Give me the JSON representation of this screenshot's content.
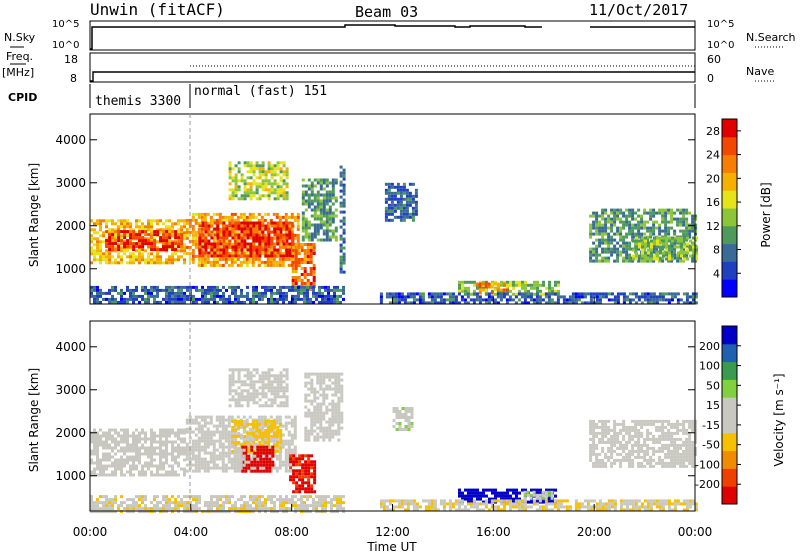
{
  "header": {
    "radar": "Unwin (fitACF)",
    "beam": "Beam 03",
    "date": "11/Oct/2017"
  },
  "top_panels": {
    "nsky_label": "N.Sky",
    "nsky_ticks": [
      "10^5",
      "10^0"
    ],
    "nsearch_label": "N.Search",
    "freq_label": "Freq.",
    "freq_unit": "[MHz]",
    "freq_ticks": [
      "18",
      "8"
    ],
    "nave_ticks": [
      "60",
      "0"
    ],
    "nave_label": "Nave",
    "cpid_label": "CPID",
    "cpid_segments": [
      {
        "name": "themis 3300",
        "start_hour": 0
      },
      {
        "name": "normal (fast) 151",
        "start_hour": 4
      }
    ]
  },
  "colors": {
    "power_scale": [
      "#0000ff",
      "#2040c0",
      "#3a6b96",
      "#4d9a5a",
      "#8cc43a",
      "#e6e31a",
      "#f5b000",
      "#f77e00",
      "#f24800",
      "#e00000"
    ],
    "velocity_scale": [
      "#e00000",
      "#f04000",
      "#f08c00",
      "#f5c000",
      "#c8c8c0",
      "#c8c8c0",
      "#80d040",
      "#3a9a50",
      "#2060b0",
      "#0000c8"
    ]
  },
  "chart_data": [
    {
      "type": "heatmap",
      "title": "Power",
      "xlabel": "Time UT",
      "ylabel": "Slant Range [km]",
      "xticks": [
        "00:00",
        "04:00",
        "08:00",
        "12:00",
        "16:00",
        "20:00",
        "00:00"
      ],
      "xlim_hours": [
        0,
        24
      ],
      "yticks": [
        "1000",
        "2000",
        "3000",
        "4000"
      ],
      "ylim_km": [
        180,
        4600
      ],
      "colorbar_label": "Power [dB]",
      "colorbar_ticks": [
        "4",
        "8",
        "12",
        "16",
        "20",
        "24",
        "28"
      ],
      "colorbar_range": [
        0,
        30
      ],
      "regions": [
        {
          "t0": 0.0,
          "t1": 3.8,
          "r0": 1150,
          "r1": 2150,
          "value": 19
        },
        {
          "t0": 0.6,
          "t1": 3.6,
          "r0": 1450,
          "r1": 1900,
          "value": 27
        },
        {
          "t0": 3.8,
          "t1": 8.3,
          "r0": 1100,
          "r1": 2300,
          "value": 21
        },
        {
          "t0": 4.3,
          "t1": 8.0,
          "r0": 1300,
          "r1": 2100,
          "value": 27
        },
        {
          "t0": 8.0,
          "t1": 8.9,
          "r0": 550,
          "r1": 1600,
          "value": 24
        },
        {
          "t0": 8.4,
          "t1": 9.8,
          "r0": 1700,
          "r1": 3100,
          "value": 10
        },
        {
          "t0": 5.5,
          "t1": 7.8,
          "r0": 2600,
          "r1": 3500,
          "value": 15
        },
        {
          "t0": 9.9,
          "t1": 10.1,
          "r0": 900,
          "r1": 3400,
          "value": 8
        },
        {
          "t0": 11.7,
          "t1": 13.0,
          "r0": 2100,
          "r1": 3000,
          "value": 7
        },
        {
          "t0": 14.6,
          "t1": 18.6,
          "r0": 400,
          "r1": 720,
          "value": 13
        },
        {
          "t0": 15.3,
          "t1": 16.6,
          "r0": 420,
          "r1": 680,
          "value": 21
        },
        {
          "t0": 19.8,
          "t1": 24.0,
          "r0": 1200,
          "r1": 2400,
          "value": 10
        },
        {
          "t0": 21.5,
          "t1": 24.0,
          "r0": 1250,
          "r1": 1750,
          "value": 13
        },
        {
          "t0": 0.0,
          "t1": 10.0,
          "r0": 200,
          "r1": 600,
          "value": 6
        },
        {
          "t0": 11.5,
          "t1": 24.0,
          "r0": 200,
          "r1": 450,
          "value": 6
        }
      ]
    },
    {
      "type": "heatmap",
      "title": "Velocity",
      "xlabel": "Time UT",
      "ylabel": "Slant Range [km]",
      "xticks": [
        "00:00",
        "04:00",
        "08:00",
        "12:00",
        "16:00",
        "20:00",
        "00:00"
      ],
      "xlim_hours": [
        0,
        24
      ],
      "yticks": [
        "1000",
        "2000",
        "3000",
        "4000"
      ],
      "ylim_km": [
        180,
        4600
      ],
      "colorbar_label": "Velocity [m s⁻¹]",
      "colorbar_ticks": [
        "200",
        "100",
        "50",
        "15",
        "-15",
        "-50",
        "-100",
        "-200"
      ],
      "colorbar_range": [
        -250,
        250
      ],
      "regions": [
        {
          "t0": 0.0,
          "t1": 3.8,
          "r0": 1050,
          "r1": 2100,
          "value": 0
        },
        {
          "t0": 3.8,
          "t1": 8.2,
          "r0": 1100,
          "r1": 2400,
          "value": 0
        },
        {
          "t0": 5.6,
          "t1": 7.6,
          "r0": 1600,
          "r1": 2300,
          "value": -60
        },
        {
          "t0": 6.0,
          "t1": 7.2,
          "r0": 1100,
          "r1": 1700,
          "value": -220
        },
        {
          "t0": 5.7,
          "t1": 6.1,
          "r0": 1200,
          "r1": 1700,
          "value": 30
        },
        {
          "t0": 7.9,
          "t1": 8.9,
          "r0": 600,
          "r1": 1500,
          "value": -210
        },
        {
          "t0": 8.5,
          "t1": 10.0,
          "r0": 1800,
          "r1": 3400,
          "value": 0
        },
        {
          "t0": 5.5,
          "t1": 7.8,
          "r0": 2600,
          "r1": 3500,
          "value": 0
        },
        {
          "t0": 12.0,
          "t1": 12.8,
          "r0": 2100,
          "r1": 2600,
          "value": 35
        },
        {
          "t0": 14.6,
          "t1": 18.5,
          "r0": 380,
          "r1": 700,
          "value": 220
        },
        {
          "t0": 17.2,
          "t1": 18.3,
          "r0": 450,
          "r1": 650,
          "value": 35
        },
        {
          "t0": 19.8,
          "t1": 24.0,
          "r0": 1200,
          "r1": 2300,
          "value": 0
        },
        {
          "t0": 0.0,
          "t1": 10.0,
          "r0": 200,
          "r1": 550,
          "value": -40
        },
        {
          "t0": 11.5,
          "t1": 24.0,
          "r0": 200,
          "r1": 450,
          "value": -45
        }
      ]
    }
  ]
}
